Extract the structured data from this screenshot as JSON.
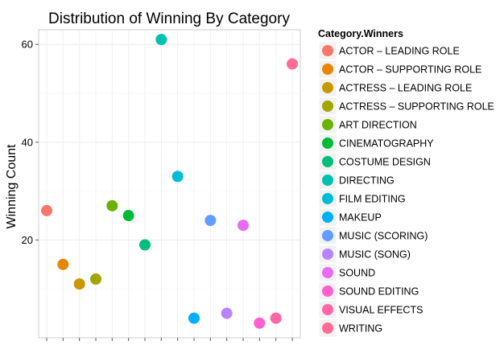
{
  "chart_data": {
    "type": "scatter",
    "title": "Distribution of Winning By Category",
    "xlabel": "",
    "ylabel": "Winning Count",
    "ylim": [
      0,
      63
    ],
    "yticks": [
      20,
      40,
      60
    ],
    "grid": true,
    "legend_title": "Category.Winners",
    "legend_position": "right",
    "categories": [
      "ACTOR – LEADING ROLE",
      "ACTOR – SUPPORTING ROLE",
      "ACTRESS – LEADING ROLE",
      "ACTRESS – SUPPORTING ROLE",
      "ART DIRECTION",
      "CINEMATOGRAPHY",
      "COSTUME DESIGN",
      "DIRECTING",
      "FILM EDITING",
      "MAKEUP",
      "MUSIC (SCORING)",
      "MUSIC (SONG)",
      "SOUND",
      "SOUND EDITING",
      "VISUAL EFFECTS",
      "WRITING"
    ],
    "values": [
      26,
      15,
      11,
      12,
      27,
      25,
      19,
      61,
      33,
      4,
      24,
      5,
      23,
      3,
      4,
      56
    ],
    "colors": [
      "#F8766D",
      "#E58700",
      "#C99800",
      "#A3A500",
      "#6BB100",
      "#00BA38",
      "#00BF7D",
      "#00C0AF",
      "#00BCD8",
      "#00B0F6",
      "#619CFF",
      "#B983FF",
      "#E76BF3",
      "#FD61D1",
      "#FF67A4",
      "#FF6C91"
    ]
  }
}
